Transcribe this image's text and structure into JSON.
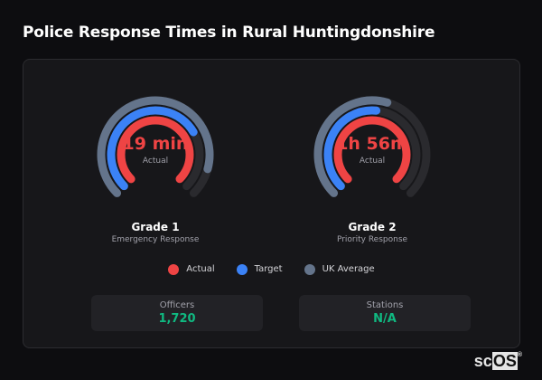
{
  "title": "Police Response Times in Rural Huntingdonshire",
  "colors": {
    "actual": "#ef4444",
    "target": "#3b82f6",
    "uk_average": "#64748b",
    "track": "#2a2a2e",
    "stat_value": "#10b981"
  },
  "gauges": [
    {
      "value": "19 min",
      "value_label": "Actual",
      "name": "Grade 1",
      "subtitle": "Emergency Response",
      "fill": {
        "actual": 1.0,
        "target": 0.72,
        "uk_average": 0.89
      }
    },
    {
      "value": "1h 56m",
      "value_label": "Actual",
      "name": "Grade 2",
      "subtitle": "Priority Response",
      "fill": {
        "actual": 1.0,
        "target": 0.52,
        "uk_average": 0.56
      }
    }
  ],
  "legend": [
    {
      "label": "Actual",
      "color": "#ef4444"
    },
    {
      "label": "Target",
      "color": "#3b82f6"
    },
    {
      "label": "UK Average",
      "color": "#64748b"
    }
  ],
  "stats": [
    {
      "label": "Officers",
      "value": "1,720"
    },
    {
      "label": "Stations",
      "value": "N/A"
    }
  ],
  "logo": "scOS"
}
